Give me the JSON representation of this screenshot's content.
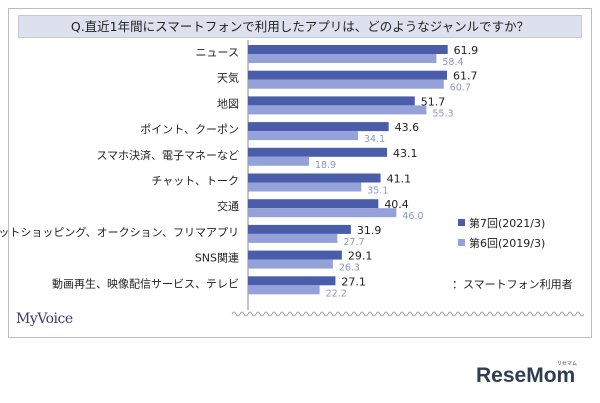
{
  "chart_data": {
    "type": "bar",
    "title": "Q.直近1年間にスマートフォンで利用したアプリは、どのようなジャンルですか？",
    "categories": [
      "ニュース",
      "天気",
      "地図",
      "ポイント、クーポン",
      "スマホ決済、電子マネーなど",
      "チャット、トーク",
      "交通",
      "ネットショッピング、オークション、フリマアプリ",
      "SNS関連",
      "動画再生、映像配信サービス、テレビ"
    ],
    "series": [
      {
        "name": "第7回(2021/3)",
        "color": "#4a5dab",
        "values": [
          61.9,
          61.7,
          51.7,
          43.6,
          43.1,
          41.1,
          40.4,
          31.9,
          29.1,
          27.1
        ]
      },
      {
        "name": "第6回(2019/3)",
        "color": "#95a1d9",
        "values": [
          58.4,
          60.7,
          55.3,
          34.1,
          18.9,
          35.1,
          46.0,
          27.7,
          26.3,
          22.2
        ]
      }
    ],
    "xlim": [
      0,
      100
    ],
    "legend_position": "right",
    "legend_note": "：スマートフォン利用者"
  },
  "brand": {
    "left": "MyVoice",
    "right": "ReseMom",
    "right_sub": "リセマム"
  }
}
